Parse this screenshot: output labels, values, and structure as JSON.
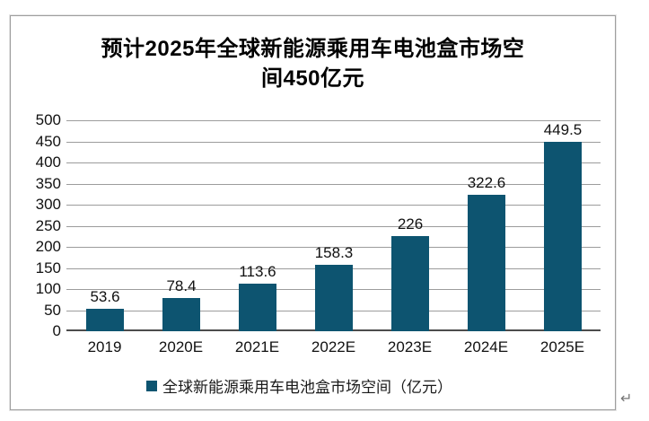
{
  "page": {
    "return_mark": "↵"
  },
  "chart_data": {
    "type": "bar",
    "title": "预计2025年全球新能源乘用车电池盒市场空间450亿元",
    "title_lines": [
      "预计2025年全球新能源乘用车电池盒市场空",
      "间450亿元"
    ],
    "categories": [
      "2019",
      "2020E",
      "2021E",
      "2022E",
      "2023E",
      "2024E",
      "2025E"
    ],
    "values": [
      53.6,
      78.4,
      113.6,
      158.3,
      226,
      322.6,
      449.5
    ],
    "value_labels": [
      "53.6",
      "78.4",
      "113.6",
      "158.3",
      "226",
      "322.6",
      "449.5"
    ],
    "legend": "全球新能源乘用车电池盒市场空间（亿元）",
    "legend_position": "bottom",
    "xlabel": "",
    "ylabel": "",
    "ylim": [
      0,
      500
    ],
    "yticks": [
      0,
      50,
      100,
      150,
      200,
      250,
      300,
      350,
      400,
      450,
      500
    ],
    "grid": true,
    "bar_color": "#0d5470",
    "gridline_color": "#9c9c9c",
    "axis_color": "#4d4d4d",
    "text_color": "#111111"
  }
}
